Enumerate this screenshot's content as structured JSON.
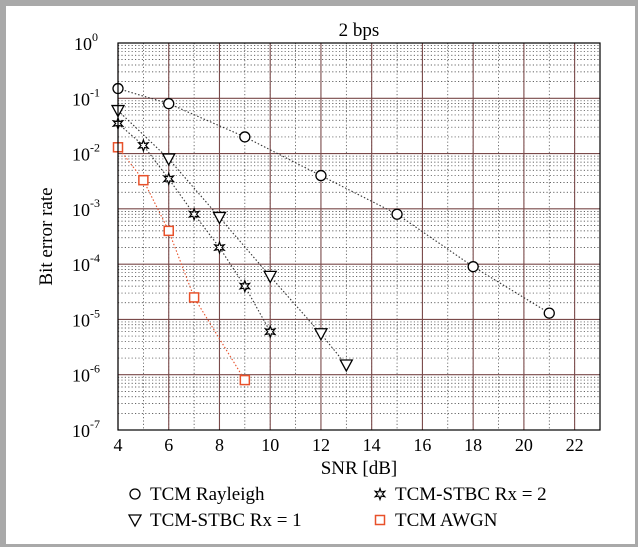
{
  "chart_data": {
    "type": "line",
    "title": "2 bps",
    "xlabel": "SNR [dB]",
    "ylabel": "Bit error rate",
    "xlim": [
      4,
      23
    ],
    "ylim": [
      1e-07,
      1
    ],
    "yscale": "log",
    "grid": true,
    "legend_position": "bottom",
    "x_ticks": [
      4,
      6,
      8,
      10,
      12,
      14,
      16,
      18,
      20,
      22
    ],
    "y_ticks": [
      {
        "base": "10",
        "exp": "0",
        "value": 1
      },
      {
        "base": "10",
        "exp": "-1",
        "value": 0.1
      },
      {
        "base": "10",
        "exp": "-2",
        "value": 0.01
      },
      {
        "base": "10",
        "exp": "-3",
        "value": 0.001
      },
      {
        "base": "10",
        "exp": "-4",
        "value": 0.0001
      },
      {
        "base": "10",
        "exp": "-5",
        "value": 1e-05
      },
      {
        "base": "10",
        "exp": "-6",
        "value": 1e-06
      },
      {
        "base": "10",
        "exp": "-7",
        "value": 1e-07
      }
    ],
    "series": [
      {
        "name": "TCM Rayleigh",
        "marker": "circle",
        "color": "#000000",
        "x": [
          4,
          6,
          9,
          12,
          15,
          18,
          21
        ],
        "y": [
          0.15,
          0.08,
          0.02,
          0.004,
          0.0008,
          9e-05,
          1.3e-05
        ]
      },
      {
        "name": "TCM-STBC Rx = 1",
        "marker": "triangle-down",
        "color": "#000000",
        "x": [
          4,
          6,
          8,
          10,
          12,
          13
        ],
        "y": [
          0.06,
          0.008,
          0.0007,
          6e-05,
          5.5e-06,
          1.5e-06
        ]
      },
      {
        "name": "TCM-STBC Rx = 2",
        "marker": "star",
        "color": "#000000",
        "x": [
          4,
          5,
          6,
          7,
          8,
          9,
          10
        ],
        "y": [
          0.035,
          0.014,
          0.0035,
          0.0008,
          0.0002,
          4e-05,
          6e-06
        ]
      },
      {
        "name": "TCM AWGN",
        "marker": "square",
        "color": "#e8512a",
        "x": [
          4,
          5,
          6,
          7,
          9
        ],
        "y": [
          0.013,
          0.0033,
          0.0004,
          2.5e-05,
          8e-07
        ]
      }
    ]
  }
}
